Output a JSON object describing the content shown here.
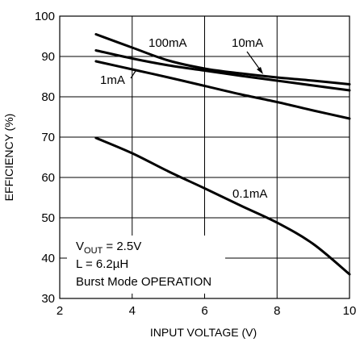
{
  "chart_data": {
    "type": "line",
    "xlabel": "INPUT VOLTAGE (V)",
    "ylabel": "EFFICIENCY (%)",
    "xlim": [
      2,
      10
    ],
    "ylim": [
      30,
      100
    ],
    "xticks": [
      "2",
      "4",
      "6",
      "8",
      "10"
    ],
    "yticks": [
      "30",
      "40",
      "50",
      "60",
      "70",
      "80",
      "90",
      "100"
    ],
    "grid": true,
    "series": [
      {
        "name": "100mA",
        "x": [
          3,
          4,
          5,
          6,
          7,
          8,
          9,
          10
        ],
        "y": [
          95.5,
          92.2,
          89.0,
          87.0,
          85.8,
          84.8,
          84.0,
          83.1
        ]
      },
      {
        "name": "10mA",
        "x": [
          3,
          4,
          5,
          6,
          7,
          8,
          9,
          10
        ],
        "y": [
          91.5,
          89.5,
          87.8,
          86.5,
          85.2,
          84.0,
          82.8,
          81.6
        ]
      },
      {
        "name": "1mA",
        "x": [
          3,
          4,
          5,
          6,
          7,
          8,
          9,
          10
        ],
        "y": [
          88.8,
          86.8,
          84.8,
          82.7,
          80.6,
          78.7,
          76.6,
          74.6
        ]
      },
      {
        "name": "0.1mA",
        "x": [
          3,
          4,
          5,
          6,
          7,
          8,
          9,
          10
        ],
        "y": [
          69.8,
          66.0,
          61.5,
          57.3,
          53.0,
          48.8,
          43.5,
          36.0
        ]
      }
    ],
    "annotations": {
      "vout_label": "V",
      "vout_sub": "OUT",
      "vout_value": " = 2.5V",
      "inductor": "L = 6.2µH",
      "mode": "Burst Mode OPERATION"
    }
  }
}
